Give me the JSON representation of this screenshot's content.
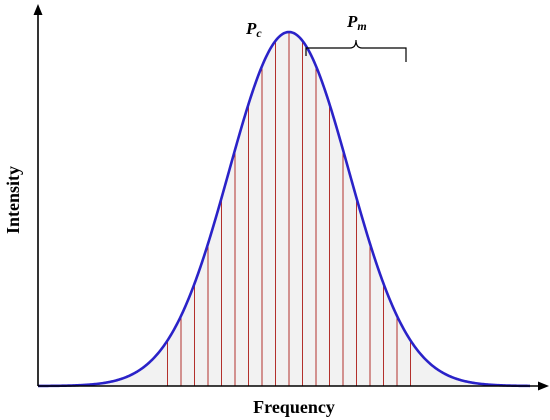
{
  "diagram": {
    "x_axis_label": "Frequency",
    "y_axis_label": "Intensity",
    "peak_label": {
      "main": "P",
      "sub": "c"
    },
    "mode_label": {
      "main": "P",
      "sub": "m"
    },
    "colors": {
      "curve": "#2a22c8",
      "fill": "#f2f2f2",
      "lines": "#b3302c",
      "axis": "#000000"
    }
  }
}
